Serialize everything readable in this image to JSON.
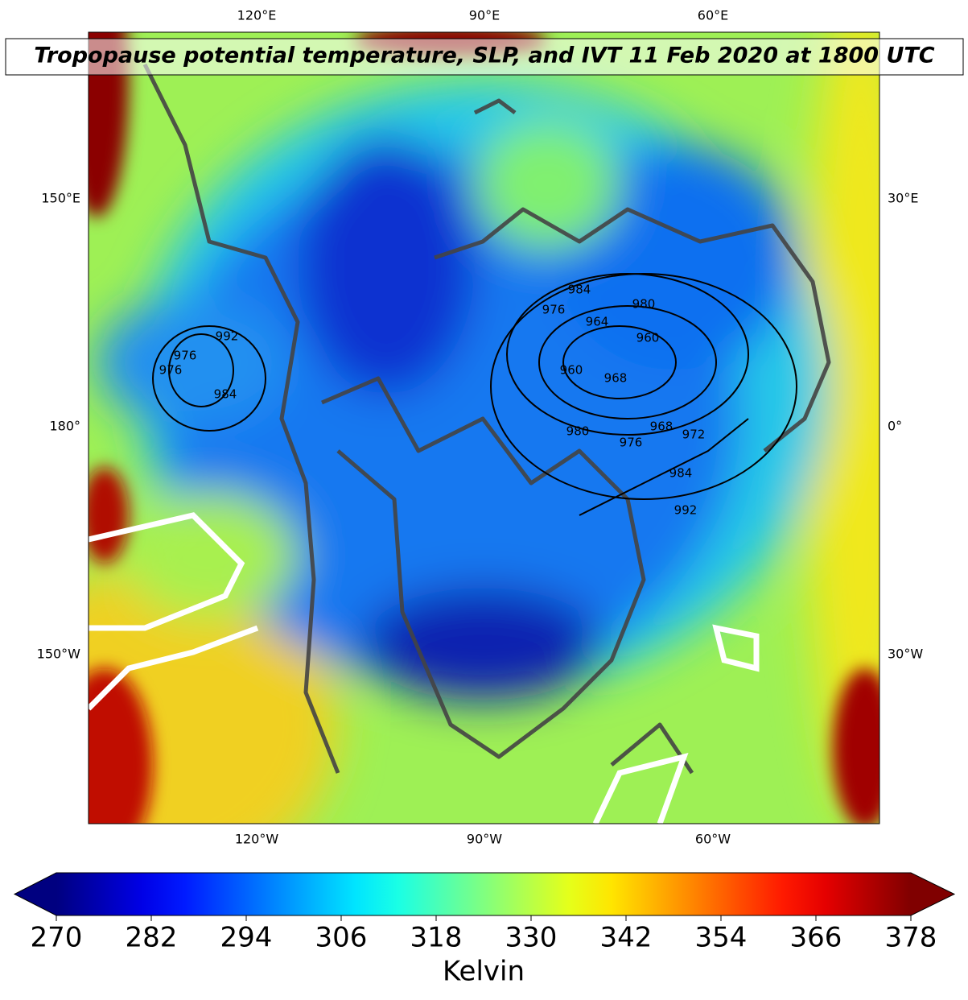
{
  "title": "Tropopause potential temperature, SLP, and IVT 11 Feb 2020 at 1800 UTC",
  "map": {
    "lon_labels_top": [
      "120°E",
      "90°E",
      "60°E"
    ],
    "lon_labels_left": [
      "150°E",
      "180°",
      "150°W"
    ],
    "lon_labels_right": [
      "30°E",
      "0°",
      "30°W"
    ],
    "lon_labels_bottom": [
      "120°W",
      "90°W",
      "60°W"
    ],
    "slp_contour_labels": [
      984,
      976,
      964,
      960,
      980,
      960,
      968,
      976,
      980,
      968,
      972,
      984,
      992,
      976,
      984,
      992,
      976
    ]
  },
  "colorbar": {
    "label": "Kelvin",
    "colormap": "jet",
    "extend": "both",
    "range": [
      270,
      378
    ],
    "ticks": [
      270,
      282,
      294,
      306,
      318,
      330,
      342,
      354,
      366,
      378
    ]
  }
}
